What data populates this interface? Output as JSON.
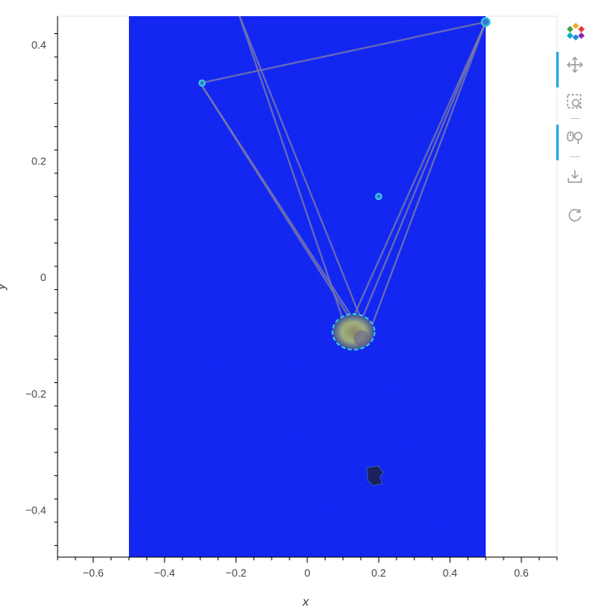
{
  "chart_data": {
    "type": "scatter",
    "xlabel": "x",
    "ylabel": "y",
    "xlim": [
      -0.7,
      0.7
    ],
    "ylim": [
      -0.48,
      0.45
    ],
    "x_ticks": [
      -0.6,
      -0.4,
      -0.2,
      0,
      0.2,
      0.4,
      0.6
    ],
    "x_tick_labels": [
      "−0.6",
      "−0.4",
      "−0.2",
      "0",
      "0.2",
      "0.4",
      "0.6"
    ],
    "y_ticks": [
      -0.4,
      -0.2,
      0,
      0.2,
      0.4
    ],
    "y_tick_labels": [
      "−0.4",
      "−0.2",
      "0",
      "0.2",
      "0.4"
    ],
    "image_extent": {
      "x": [
        -0.5,
        0.5
      ],
      "y": [
        -0.48,
        0.45
      ]
    },
    "colors": {
      "background": "#0a1cf0",
      "lines": "#7a7aa8",
      "cluster": "#9aa67a",
      "ring": "#35c8e8",
      "dark_blob": "#1b2160"
    },
    "line_segments": [
      {
        "x": [
          -0.3,
          0.13
        ],
        "y": [
          0.335,
          -0.08
        ]
      },
      {
        "x": [
          -0.3,
          0.16
        ],
        "y": [
          0.335,
          -0.1
        ]
      },
      {
        "x": [
          -0.3,
          0.5
        ],
        "y": [
          0.335,
          0.44
        ]
      },
      {
        "x": [
          0.5,
          0.12
        ],
        "y": [
          0.44,
          -0.08
        ]
      },
      {
        "x": [
          0.5,
          0.17
        ],
        "y": [
          0.44,
          -0.1
        ]
      },
      {
        "x": [
          0.5,
          0.14
        ],
        "y": [
          0.44,
          -0.09
        ]
      },
      {
        "x": [
          -0.19,
          0.11
        ],
        "y": [
          0.45,
          -0.09
        ]
      },
      {
        "x": [
          -0.19,
          0.15
        ],
        "y": [
          0.45,
          -0.07
        ]
      }
    ],
    "points": [
      {
        "x": -0.295,
        "y": 0.335
      },
      {
        "x": 0.5,
        "y": 0.44
      },
      {
        "x": 0.2,
        "y": 0.14
      },
      {
        "x": 0.125,
        "y": -0.09
      },
      {
        "x": 0.19,
        "y": -0.34
      }
    ]
  },
  "toolbar": {
    "tools": [
      {
        "name": "bokeh-logo-icon",
        "active": false
      },
      {
        "name": "pan-icon",
        "active": true
      },
      {
        "name": "box-zoom-icon",
        "active": false
      },
      {
        "name": "wheel-zoom-icon",
        "active": true
      },
      {
        "name": "save-icon",
        "active": false
      },
      {
        "name": "reset-icon",
        "active": false
      }
    ]
  }
}
